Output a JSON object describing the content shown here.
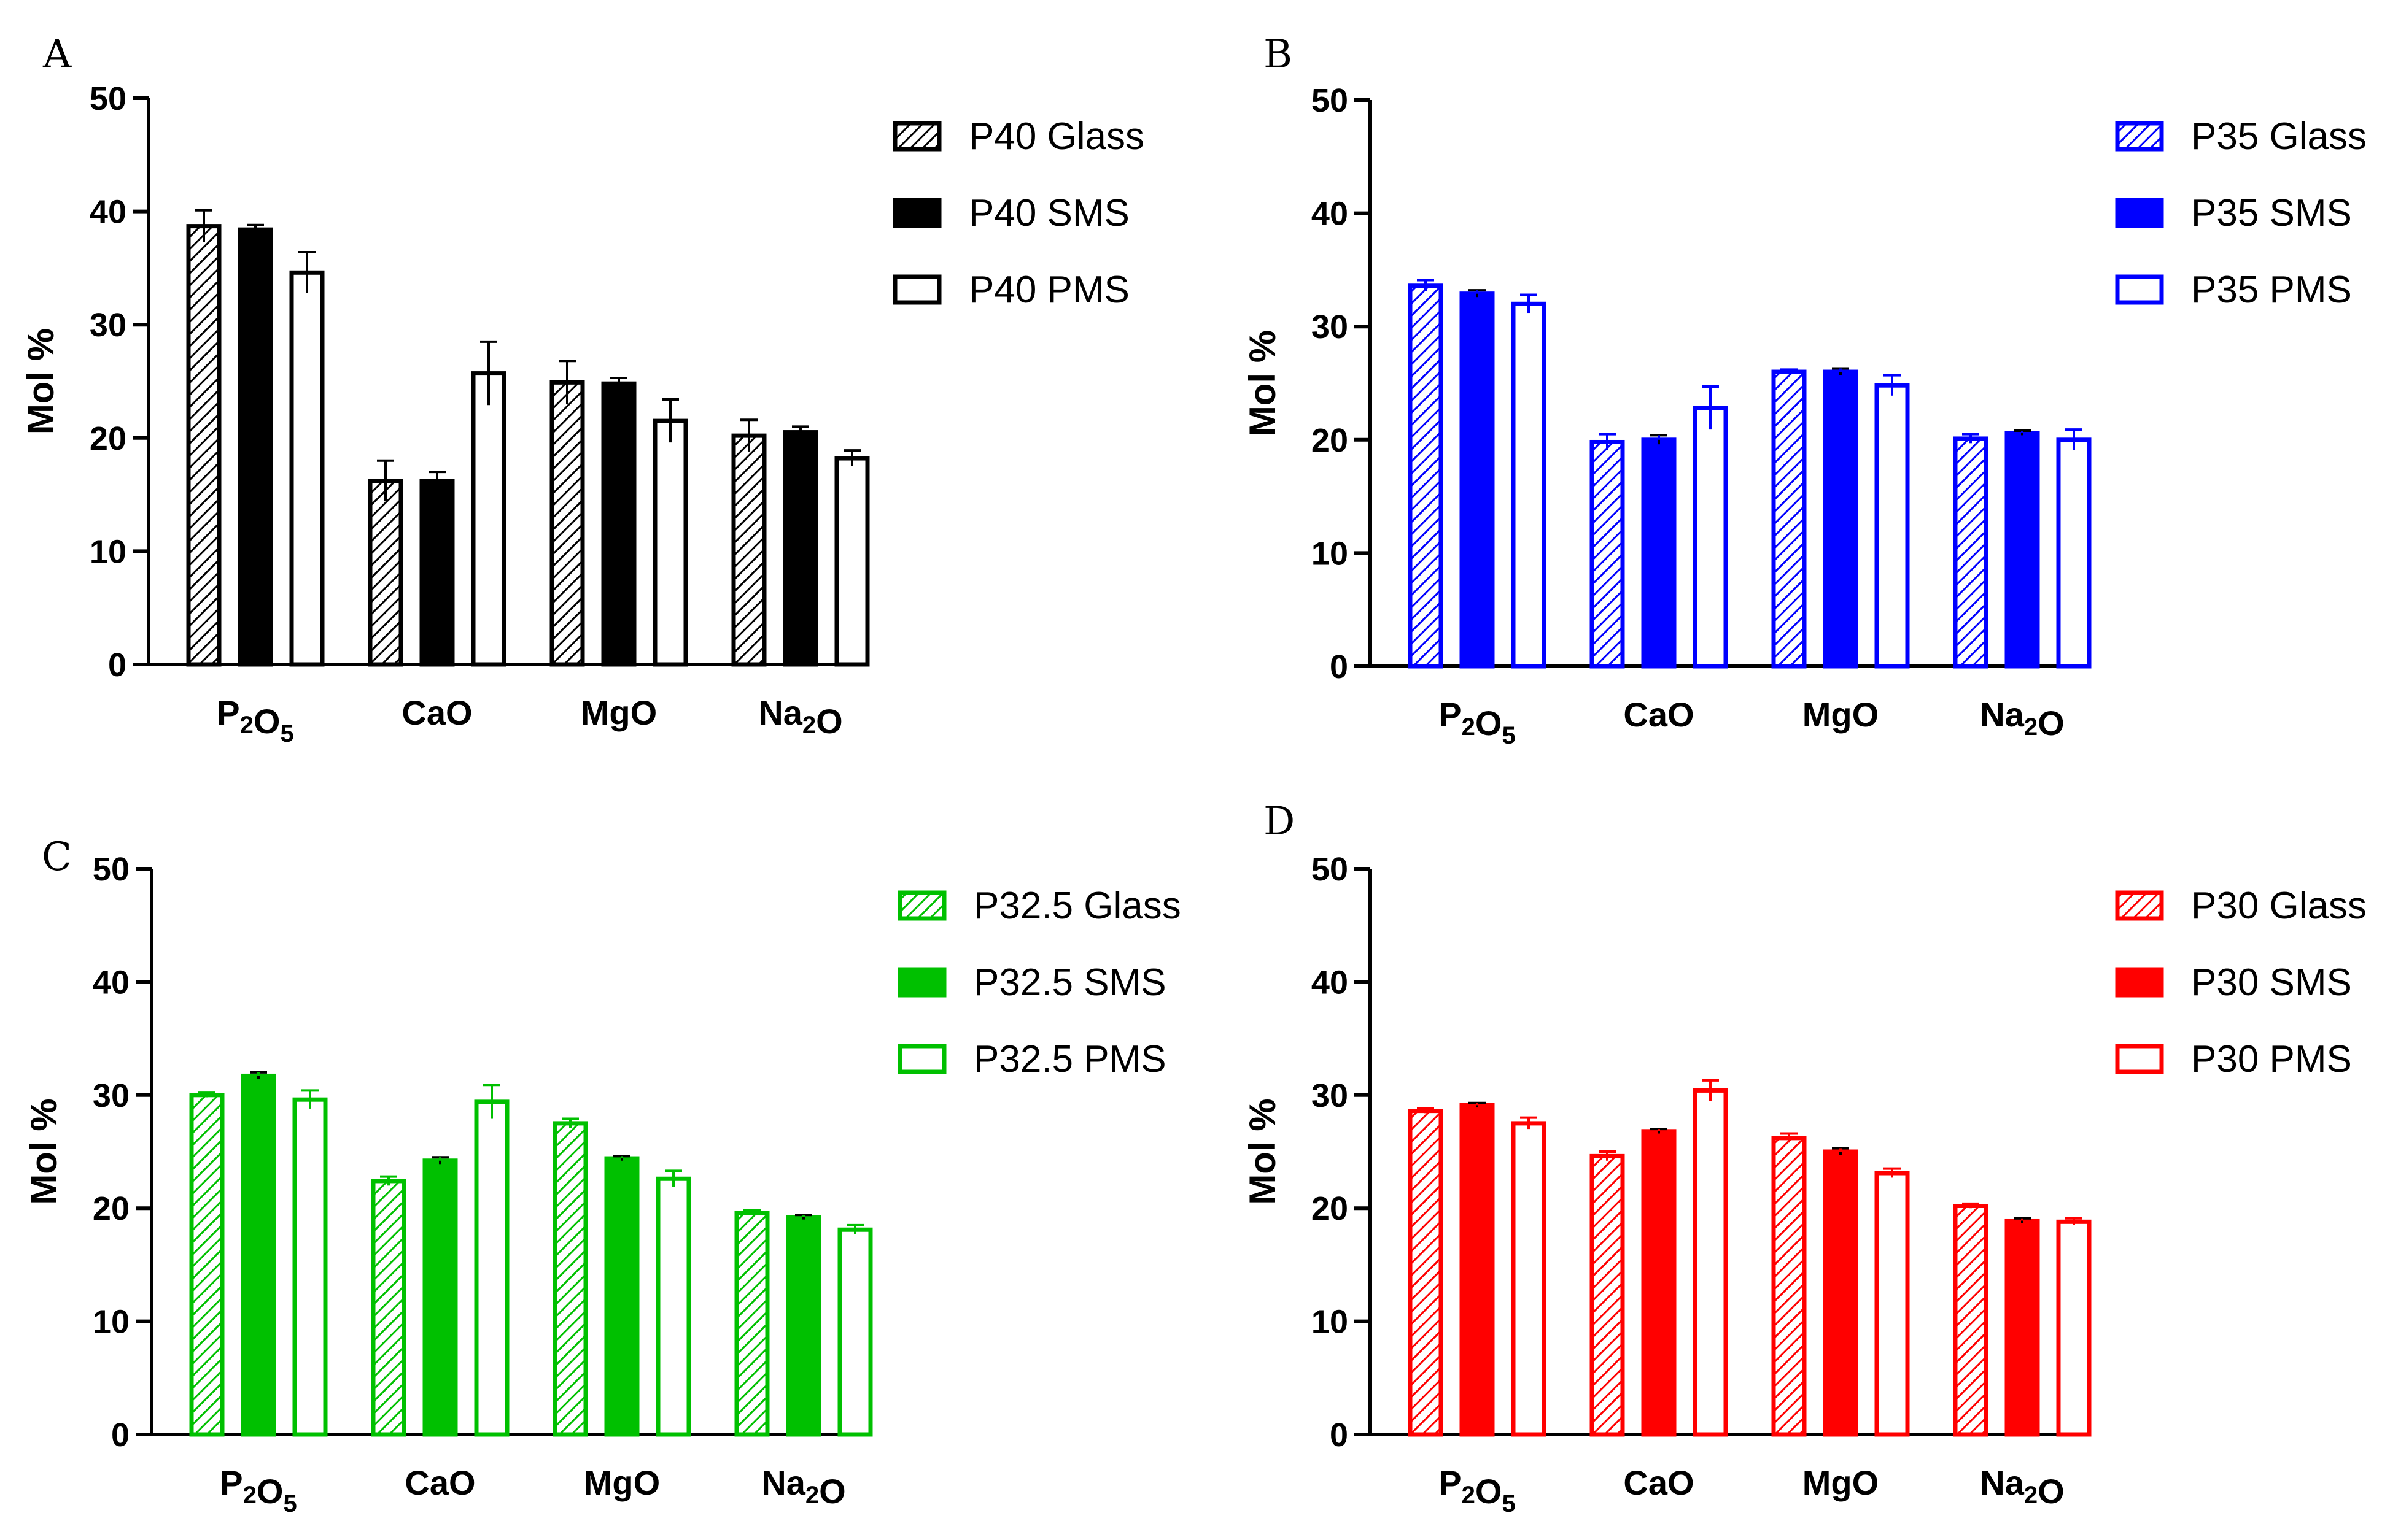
{
  "figure": {
    "chart_data": [
      {
        "panel": "A",
        "type": "bar",
        "color": "#000000",
        "ylabel": "Mol %",
        "xlabel": "",
        "ylim": [
          0,
          50
        ],
        "yticks": [
          "0",
          "10",
          "20",
          "30",
          "40",
          "50"
        ],
        "categories": [
          "P2O5",
          "CaO",
          "MgO",
          "Na2O"
        ],
        "series": [
          {
            "name": "P40 Glass",
            "style": "hatched",
            "values": [
              38.7,
              16.2,
              24.9,
              20.2
            ],
            "errors": [
              1.4,
              1.8,
              1.9,
              1.4
            ]
          },
          {
            "name": "P40 SMS",
            "style": "solid",
            "values": [
              38.4,
              16.2,
              24.8,
              20.5
            ],
            "errors": [
              0.4,
              0.8,
              0.5,
              0.5
            ]
          },
          {
            "name": "P40 PMS",
            "style": "open",
            "values": [
              34.6,
              25.7,
              21.5,
              18.2
            ],
            "errors": [
              1.8,
              2.8,
              1.9,
              0.7
            ]
          }
        ]
      },
      {
        "panel": "B",
        "type": "bar",
        "color": "#0000ff",
        "ylabel": "Mol %",
        "xlabel": "",
        "ylim": [
          0,
          50
        ],
        "yticks": [
          "0",
          "10",
          "20",
          "30",
          "40",
          "50"
        ],
        "categories": [
          "P2O5",
          "CaO",
          "MgO",
          "Na2O"
        ],
        "series": [
          {
            "name": "P35 Glass",
            "style": "hatched",
            "values": [
              33.6,
              19.8,
              26.0,
              20.1
            ],
            "errors": [
              0.5,
              0.7,
              0.2,
              0.4
            ]
          },
          {
            "name": "P35 SMS",
            "style": "solid",
            "values": [
              32.9,
              20.0,
              26.0,
              20.6
            ],
            "errors": [
              0.3,
              0.4,
              0.3,
              0.2
            ]
          },
          {
            "name": "P35 PMS",
            "style": "open",
            "values": [
              32.0,
              22.8,
              24.8,
              20.0
            ],
            "errors": [
              0.8,
              1.9,
              0.9,
              0.9
            ]
          }
        ]
      },
      {
        "panel": "C",
        "type": "bar",
        "color": "#00c000",
        "ylabel": "Mol %",
        "xlabel": "",
        "ylim": [
          0,
          50
        ],
        "yticks": [
          "0",
          "10",
          "20",
          "30",
          "40",
          "50"
        ],
        "categories": [
          "P2O5",
          "CaO",
          "MgO",
          "Na2O"
        ],
        "series": [
          {
            "name": "P32.5 Glass",
            "style": "hatched",
            "values": [
              30.0,
              22.4,
              27.5,
              19.6
            ],
            "errors": [
              0.2,
              0.4,
              0.4,
              0.2
            ]
          },
          {
            "name": "P32.5 SMS",
            "style": "solid",
            "values": [
              31.7,
              24.2,
              24.4,
              19.2
            ],
            "errors": [
              0.3,
              0.3,
              0.2,
              0.2
            ]
          },
          {
            "name": "P32.5 PMS",
            "style": "open",
            "values": [
              29.6,
              29.4,
              22.6,
              18.1
            ],
            "errors": [
              0.8,
              1.5,
              0.7,
              0.4
            ]
          }
        ]
      },
      {
        "panel": "D",
        "type": "bar",
        "color": "#ff0000",
        "ylabel": "Mol %",
        "xlabel": "",
        "ylim": [
          0,
          50
        ],
        "yticks": [
          "0",
          "10",
          "20",
          "30",
          "40",
          "50"
        ],
        "categories": [
          "P2O5",
          "CaO",
          "MgO",
          "Na2O"
        ],
        "series": [
          {
            "name": "P30 Glass",
            "style": "hatched",
            "values": [
              28.6,
              24.6,
              26.2,
              20.2
            ],
            "errors": [
              0.2,
              0.4,
              0.4,
              0.2
            ]
          },
          {
            "name": "P30 SMS",
            "style": "solid",
            "values": [
              29.1,
              26.8,
              25.0,
              18.9
            ],
            "errors": [
              0.2,
              0.2,
              0.3,
              0.2
            ]
          },
          {
            "name": "P30 PMS",
            "style": "open",
            "values": [
              27.5,
              30.4,
              23.1,
              18.8
            ],
            "errors": [
              0.5,
              0.9,
              0.4,
              0.3
            ]
          }
        ]
      }
    ]
  }
}
